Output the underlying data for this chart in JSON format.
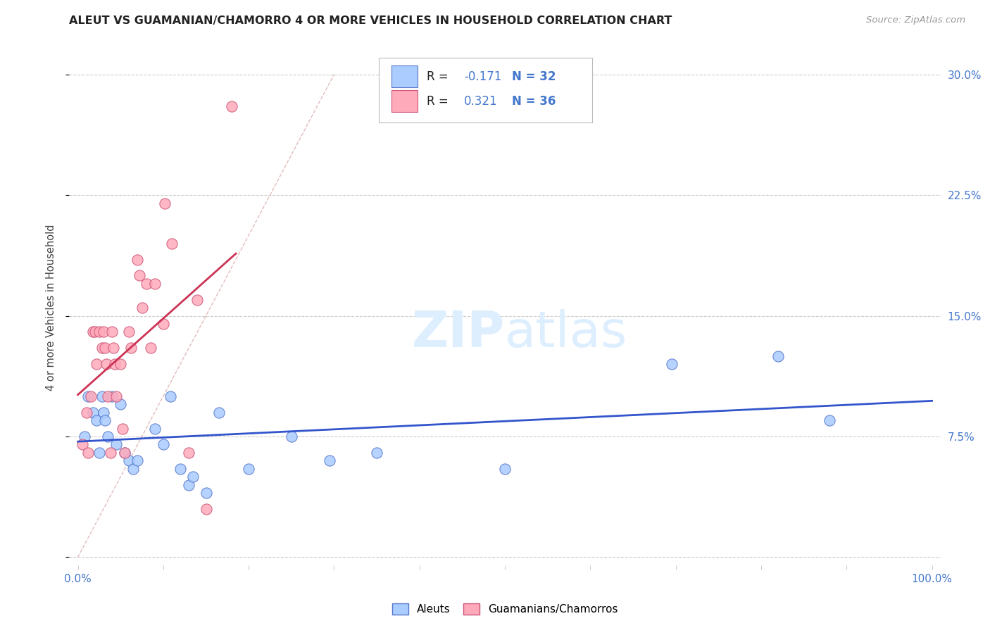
{
  "title": "ALEUT VS GUAMANIAN/CHAMORRO 4 OR MORE VEHICLES IN HOUSEHOLD CORRELATION CHART",
  "source": "Source: ZipAtlas.com",
  "ylabel": "4 or more Vehicles in Household",
  "xlim": [
    -0.01,
    1.01
  ],
  "ylim": [
    -0.005,
    0.315
  ],
  "yticks": [
    0.0,
    0.075,
    0.15,
    0.225,
    0.3
  ],
  "ytick_labels": [
    "",
    "7.5%",
    "15.0%",
    "22.5%",
    "30.0%"
  ],
  "xtick_labels_map": {
    "0.0": "0.0%",
    "1.0": "100.0%"
  },
  "background_color": "#ffffff",
  "grid_color": "#cccccc",
  "aleut_color": "#aaccff",
  "guamanian_color": "#ffaabb",
  "aleut_edge_color": "#5577cc",
  "guamanian_edge_color": "#cc5577",
  "aleut_trend_color": "#3355cc",
  "guamanian_trend_color": "#cc3355",
  "diag_color": "#cccccc",
  "tick_color": "#4477cc",
  "R_aleut": -0.171,
  "N_aleut": 32,
  "R_guam": 0.321,
  "N_guam": 36,
  "legend_label_aleut": "Aleuts",
  "legend_label_guam": "Guamanians/Chamorros",
  "title_color": "#222222",
  "source_color": "#999999",
  "aleut_x": [
    0.008,
    0.012,
    0.018,
    0.022,
    0.025,
    0.028,
    0.03,
    0.032,
    0.035,
    0.04,
    0.045,
    0.05,
    0.055,
    0.06,
    0.065,
    0.07,
    0.09,
    0.1,
    0.108,
    0.12,
    0.13,
    0.135,
    0.15,
    0.165,
    0.2,
    0.25,
    0.295,
    0.35,
    0.5,
    0.695,
    0.82,
    0.88
  ],
  "aleut_y": [
    0.075,
    0.1,
    0.09,
    0.085,
    0.065,
    0.1,
    0.09,
    0.085,
    0.075,
    0.1,
    0.07,
    0.095,
    0.065,
    0.06,
    0.055,
    0.06,
    0.08,
    0.07,
    0.1,
    0.055,
    0.045,
    0.05,
    0.04,
    0.09,
    0.055,
    0.075,
    0.06,
    0.065,
    0.055,
    0.12,
    0.125,
    0.085
  ],
  "guam_x": [
    0.005,
    0.01,
    0.012,
    0.015,
    0.018,
    0.02,
    0.022,
    0.025,
    0.028,
    0.03,
    0.032,
    0.033,
    0.035,
    0.038,
    0.04,
    0.042,
    0.043,
    0.045,
    0.05,
    0.052,
    0.055,
    0.06,
    0.062,
    0.07,
    0.072,
    0.075,
    0.08,
    0.085,
    0.09,
    0.1,
    0.102,
    0.11,
    0.13,
    0.14,
    0.15,
    0.18
  ],
  "guam_y": [
    0.07,
    0.09,
    0.065,
    0.1,
    0.14,
    0.14,
    0.12,
    0.14,
    0.13,
    0.14,
    0.13,
    0.12,
    0.1,
    0.065,
    0.14,
    0.13,
    0.12,
    0.1,
    0.12,
    0.08,
    0.065,
    0.14,
    0.13,
    0.185,
    0.175,
    0.155,
    0.17,
    0.13,
    0.17,
    0.145,
    0.22,
    0.195,
    0.065,
    0.16,
    0.03,
    0.28
  ],
  "marker_size": 120
}
